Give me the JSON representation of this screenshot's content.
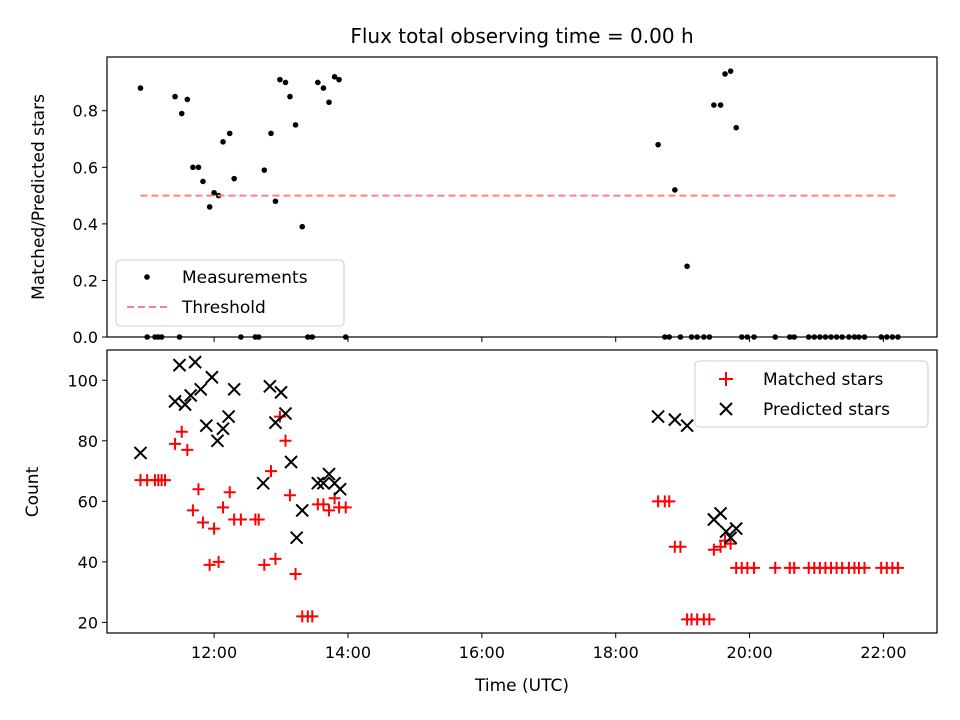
{
  "title": "Flux total observing time = 0.00 h",
  "xlabel": "Time (UTC)",
  "colors": {
    "measurement": "#000000",
    "threshold": "#ff7f7f",
    "matched": "#ff0000",
    "predicted": "#000000"
  },
  "chart_data": [
    {
      "type": "scatter",
      "panel": "top",
      "ylabel": "Matched/Predicted stars",
      "xlim": [
        "10:24",
        "22:48"
      ],
      "ylim": [
        0,
        0.99
      ],
      "xticks": [
        "12:00",
        "14:00",
        "16:00",
        "18:00",
        "20:00",
        "22:00"
      ],
      "yticks": [
        "0.0",
        "0.2",
        "0.4",
        "0.6",
        "0.8"
      ],
      "legend_position": "lower-left",
      "series": [
        {
          "name": "Measurements",
          "marker": "dot",
          "points": [
            [
              "10:54",
              0.88
            ],
            [
              "11:00",
              0.0
            ],
            [
              "11:07",
              0.0
            ],
            [
              "11:10",
              0.0
            ],
            [
              "11:13",
              0.0
            ],
            [
              "11:25",
              0.85
            ],
            [
              "11:29",
              0.0
            ],
            [
              "11:31",
              0.79
            ],
            [
              "11:36",
              0.84
            ],
            [
              "11:41",
              0.6
            ],
            [
              "11:46",
              0.6
            ],
            [
              "11:50",
              0.55
            ],
            [
              "11:56",
              0.46
            ],
            [
              "12:00",
              0.51
            ],
            [
              "12:04",
              0.5
            ],
            [
              "12:08",
              0.69
            ],
            [
              "12:14",
              0.72
            ],
            [
              "12:18",
              0.56
            ],
            [
              "12:24",
              0.0
            ],
            [
              "12:37",
              0.0
            ],
            [
              "12:40",
              0.0
            ],
            [
              "12:45",
              0.59
            ],
            [
              "12:51",
              0.72
            ],
            [
              "12:55",
              0.48
            ],
            [
              "12:59",
              0.91
            ],
            [
              "13:04",
              0.9
            ],
            [
              "13:08",
              0.85
            ],
            [
              "13:13",
              0.75
            ],
            [
              "13:19",
              0.39
            ],
            [
              "13:24",
              0.0
            ],
            [
              "13:28",
              0.0
            ],
            [
              "13:33",
              0.9
            ],
            [
              "13:38",
              0.88
            ],
            [
              "13:43",
              0.83
            ],
            [
              "13:48",
              0.92
            ],
            [
              "13:52",
              0.91
            ],
            [
              "13:58",
              0.0
            ],
            [
              "18:38",
              0.68
            ],
            [
              "18:44",
              0.0
            ],
            [
              "18:48",
              0.0
            ],
            [
              "18:53",
              0.52
            ],
            [
              "18:58",
              0.0
            ],
            [
              "19:04",
              0.25
            ],
            [
              "19:08",
              0.0
            ],
            [
              "19:13",
              0.0
            ],
            [
              "19:19",
              0.0
            ],
            [
              "19:24",
              0.0
            ],
            [
              "19:28",
              0.82
            ],
            [
              "19:34",
              0.82
            ],
            [
              "19:38",
              0.93
            ],
            [
              "19:43",
              0.94
            ],
            [
              "19:48",
              0.74
            ],
            [
              "19:53",
              0.0
            ],
            [
              "19:58",
              0.0
            ],
            [
              "20:04",
              0.0
            ],
            [
              "20:23",
              0.0
            ],
            [
              "20:36",
              0.0
            ],
            [
              "20:40",
              0.0
            ],
            [
              "20:53",
              0.0
            ],
            [
              "20:58",
              0.0
            ],
            [
              "21:03",
              0.0
            ],
            [
              "21:08",
              0.0
            ],
            [
              "21:13",
              0.0
            ],
            [
              "21:18",
              0.0
            ],
            [
              "21:23",
              0.0
            ],
            [
              "21:29",
              0.0
            ],
            [
              "21:34",
              0.0
            ],
            [
              "21:38",
              0.0
            ],
            [
              "21:43",
              0.0
            ],
            [
              "21:58",
              0.0
            ],
            [
              "22:03",
              0.0
            ],
            [
              "22:08",
              0.0
            ],
            [
              "22:13",
              0.0
            ]
          ]
        },
        {
          "name": "Threshold",
          "line": "dashed",
          "points": [
            [
              "10:54",
              0.5
            ],
            [
              "22:13",
              0.5
            ]
          ]
        }
      ]
    },
    {
      "type": "scatter",
      "panel": "bottom",
      "ylabel": "Count",
      "xlim": [
        "10:24",
        "22:48"
      ],
      "ylim": [
        16.5,
        110
      ],
      "xticks": [
        "12:00",
        "14:00",
        "16:00",
        "18:00",
        "20:00",
        "22:00"
      ],
      "yticks": [
        "20",
        "40",
        "60",
        "80",
        "100"
      ],
      "legend_position": "upper-right",
      "series": [
        {
          "name": "Matched stars",
          "marker": "plus",
          "points": [
            [
              "10:54",
              67
            ],
            [
              "11:00",
              67
            ],
            [
              "11:07",
              67
            ],
            [
              "11:10",
              67
            ],
            [
              "11:13",
              67
            ],
            [
              "11:16",
              67
            ],
            [
              "11:25",
              79
            ],
            [
              "11:31",
              83
            ],
            [
              "11:36",
              77
            ],
            [
              "11:41",
              57
            ],
            [
              "11:46",
              64
            ],
            [
              "11:50",
              53
            ],
            [
              "11:56",
              39
            ],
            [
              "12:00",
              51
            ],
            [
              "12:04",
              40
            ],
            [
              "12:08",
              58
            ],
            [
              "12:14",
              63
            ],
            [
              "12:18",
              54
            ],
            [
              "12:24",
              54
            ],
            [
              "12:37",
              54
            ],
            [
              "12:40",
              54
            ],
            [
              "12:45",
              39
            ],
            [
              "12:51",
              70
            ],
            [
              "12:55",
              41
            ],
            [
              "12:59",
              88
            ],
            [
              "13:04",
              80
            ],
            [
              "13:08",
              62
            ],
            [
              "13:13",
              36
            ],
            [
              "13:19",
              22
            ],
            [
              "13:24",
              22
            ],
            [
              "13:28",
              22
            ],
            [
              "13:33",
              59
            ],
            [
              "13:38",
              59
            ],
            [
              "13:43",
              57
            ],
            [
              "13:48",
              61
            ],
            [
              "13:52",
              58
            ],
            [
              "13:58",
              58
            ],
            [
              "18:38",
              60
            ],
            [
              "18:44",
              60
            ],
            [
              "18:48",
              60
            ],
            [
              "18:53",
              45
            ],
            [
              "18:58",
              45
            ],
            [
              "19:04",
              21
            ],
            [
              "19:08",
              21
            ],
            [
              "19:13",
              21
            ],
            [
              "19:19",
              21
            ],
            [
              "19:24",
              21
            ],
            [
              "19:28",
              44
            ],
            [
              "19:34",
              45
            ],
            [
              "19:38",
              47
            ],
            [
              "19:43",
              46
            ],
            [
              "19:48",
              38
            ],
            [
              "19:53",
              38
            ],
            [
              "19:58",
              38
            ],
            [
              "20:04",
              38
            ],
            [
              "20:23",
              38
            ],
            [
              "20:36",
              38
            ],
            [
              "20:40",
              38
            ],
            [
              "20:53",
              38
            ],
            [
              "20:58",
              38
            ],
            [
              "21:03",
              38
            ],
            [
              "21:08",
              38
            ],
            [
              "21:13",
              38
            ],
            [
              "21:18",
              38
            ],
            [
              "21:23",
              38
            ],
            [
              "21:29",
              38
            ],
            [
              "21:34",
              38
            ],
            [
              "21:38",
              38
            ],
            [
              "21:43",
              38
            ],
            [
              "21:58",
              38
            ],
            [
              "22:03",
              38
            ],
            [
              "22:08",
              38
            ],
            [
              "22:13",
              38
            ]
          ]
        },
        {
          "name": "Predicted stars",
          "marker": "x",
          "points": [
            [
              "10:54",
              76
            ],
            [
              "11:25",
              93
            ],
            [
              "11:29",
              105
            ],
            [
              "11:34",
              92
            ],
            [
              "11:39",
              95
            ],
            [
              "11:43",
              106
            ],
            [
              "11:48",
              97
            ],
            [
              "11:53",
              85
            ],
            [
              "11:58",
              101
            ],
            [
              "12:03",
              80
            ],
            [
              "12:08",
              84
            ],
            [
              "12:13",
              88
            ],
            [
              "12:18",
              97
            ],
            [
              "12:44",
              66
            ],
            [
              "12:50",
              98
            ],
            [
              "12:55",
              86
            ],
            [
              "13:00",
              96
            ],
            [
              "13:04",
              89
            ],
            [
              "13:09",
              73
            ],
            [
              "13:14",
              48
            ],
            [
              "13:19",
              57
            ],
            [
              "13:33",
              66
            ],
            [
              "13:38",
              66
            ],
            [
              "13:43",
              69
            ],
            [
              "13:48",
              66
            ],
            [
              "13:53",
              64
            ],
            [
              "18:38",
              88
            ],
            [
              "18:53",
              87
            ],
            [
              "19:04",
              85
            ],
            [
              "19:28",
              54
            ],
            [
              "19:34",
              56
            ],
            [
              "19:39",
              50
            ],
            [
              "19:43",
              48
            ],
            [
              "19:48",
              51
            ]
          ]
        }
      ]
    }
  ]
}
